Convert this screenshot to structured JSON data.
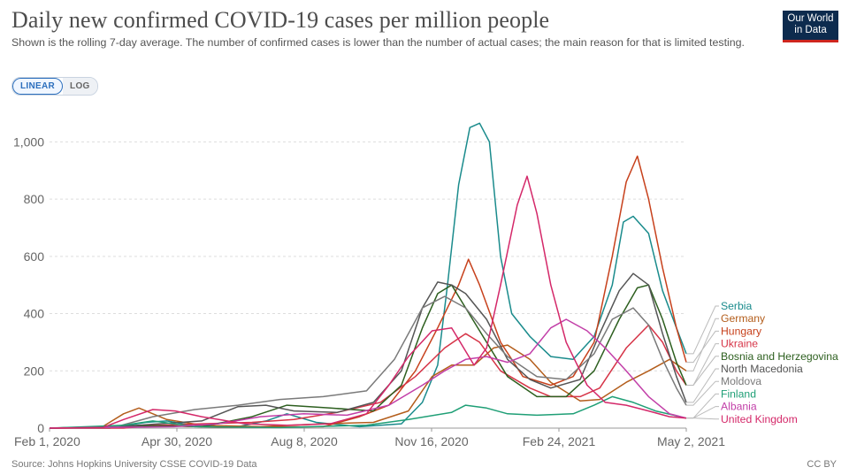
{
  "header": {
    "title": "Daily new confirmed COVID-19 cases per million people",
    "subtitle": "Shown is the rolling 7-day average. The number of confirmed cases is lower than the number of actual cases; the main reason for that is limited testing.",
    "logo_line1": "Our World",
    "logo_line2": "in Data"
  },
  "controls": {
    "linear_label": "LINEAR",
    "log_label": "LOG",
    "selected": "LINEAR"
  },
  "footer": {
    "source": "Source: Johns Hopkins University CSSE COVID-19 Data",
    "license": "CC BY"
  },
  "chart_data": {
    "type": "line",
    "xlabel": "",
    "ylabel": "",
    "x_ticks": [
      "Feb 1, 2020",
      "Apr 30, 2020",
      "Aug 8, 2020",
      "Nov 16, 2020",
      "Feb 24, 2021",
      "May 2, 2021"
    ],
    "y_ticks": [
      "0",
      "200",
      "400",
      "600",
      "800",
      "1,000"
    ],
    "ylim": [
      0,
      1100
    ],
    "x_start": "2020-02-01",
    "x_end": "2021-05-02",
    "grid": "horizontal dashed",
    "legend": "right, labels at line ends",
    "series": [
      {
        "name": "Serbia",
        "color": "#1a8b8c",
        "points": [
          [
            "2020-02-01",
            0
          ],
          [
            "2020-03-15",
            0
          ],
          [
            "2020-04-10",
            20
          ],
          [
            "2020-04-25",
            25
          ],
          [
            "2020-05-15",
            8
          ],
          [
            "2020-06-15",
            5
          ],
          [
            "2020-07-05",
            25
          ],
          [
            "2020-07-20",
            50
          ],
          [
            "2020-08-10",
            20
          ],
          [
            "2020-09-10",
            5
          ],
          [
            "2020-10-10",
            15
          ],
          [
            "2020-10-25",
            90
          ],
          [
            "2020-11-05",
            220
          ],
          [
            "2020-11-12",
            500
          ],
          [
            "2020-11-20",
            850
          ],
          [
            "2020-11-28",
            1050
          ],
          [
            "2020-12-05",
            1065
          ],
          [
            "2020-12-12",
            1000
          ],
          [
            "2020-12-20",
            600
          ],
          [
            "2020-12-28",
            400
          ],
          [
            "2021-01-10",
            320
          ],
          [
            "2021-01-25",
            250
          ],
          [
            "2021-02-10",
            240
          ],
          [
            "2021-02-25",
            320
          ],
          [
            "2021-03-10",
            500
          ],
          [
            "2021-03-18",
            720
          ],
          [
            "2021-03-25",
            740
          ],
          [
            "2021-04-05",
            680
          ],
          [
            "2021-04-15",
            480
          ],
          [
            "2021-04-25",
            350
          ],
          [
            "2021-05-02",
            260
          ]
        ]
      },
      {
        "name": "Germany",
        "color": "#b35d1b",
        "points": [
          [
            "2020-02-01",
            0
          ],
          [
            "2020-03-10",
            5
          ],
          [
            "2020-03-25",
            50
          ],
          [
            "2020-04-05",
            70
          ],
          [
            "2020-04-25",
            30
          ],
          [
            "2020-05-20",
            10
          ],
          [
            "2020-07-01",
            5
          ],
          [
            "2020-08-15",
            15
          ],
          [
            "2020-09-20",
            20
          ],
          [
            "2020-10-15",
            60
          ],
          [
            "2020-11-01",
            180
          ],
          [
            "2020-11-15",
            220
          ],
          [
            "2020-12-01",
            220
          ],
          [
            "2020-12-15",
            280
          ],
          [
            "2020-12-25",
            290
          ],
          [
            "2021-01-10",
            240
          ],
          [
            "2021-01-25",
            160
          ],
          [
            "2021-02-15",
            95
          ],
          [
            "2021-03-01",
            100
          ],
          [
            "2021-03-20",
            160
          ],
          [
            "2021-04-05",
            200
          ],
          [
            "2021-04-20",
            240
          ],
          [
            "2021-05-02",
            200
          ]
        ]
      },
      {
        "name": "Hungary",
        "color": "#c7411c",
        "points": [
          [
            "2020-02-01",
            0
          ],
          [
            "2020-03-15",
            2
          ],
          [
            "2020-04-15",
            10
          ],
          [
            "2020-06-01",
            3
          ],
          [
            "2020-08-15",
            5
          ],
          [
            "2020-09-10",
            40
          ],
          [
            "2020-10-01",
            80
          ],
          [
            "2020-10-20",
            200
          ],
          [
            "2020-11-05",
            350
          ],
          [
            "2020-11-20",
            500
          ],
          [
            "2020-11-27",
            590
          ],
          [
            "2020-12-05",
            500
          ],
          [
            "2020-12-20",
            300
          ],
          [
            "2021-01-05",
            180
          ],
          [
            "2021-01-25",
            150
          ],
          [
            "2021-02-10",
            180
          ],
          [
            "2021-02-25",
            300
          ],
          [
            "2021-03-10",
            600
          ],
          [
            "2021-03-20",
            860
          ],
          [
            "2021-03-28",
            950
          ],
          [
            "2021-04-05",
            800
          ],
          [
            "2021-04-15",
            560
          ],
          [
            "2021-04-25",
            350
          ],
          [
            "2021-05-02",
            230
          ]
        ]
      },
      {
        "name": "Ukraine",
        "color": "#d63447",
        "points": [
          [
            "2020-02-01",
            0
          ],
          [
            "2020-03-25",
            0
          ],
          [
            "2020-04-20",
            10
          ],
          [
            "2020-05-20",
            15
          ],
          [
            "2020-06-25",
            20
          ],
          [
            "2020-07-25",
            30
          ],
          [
            "2020-08-25",
            55
          ],
          [
            "2020-09-25",
            90
          ],
          [
            "2020-10-20",
            180
          ],
          [
            "2020-11-10",
            280
          ],
          [
            "2020-11-25",
            330
          ],
          [
            "2020-12-05",
            300
          ],
          [
            "2020-12-20",
            200
          ],
          [
            "2021-01-10",
            140
          ],
          [
            "2021-01-25",
            110
          ],
          [
            "2021-02-15",
            110
          ],
          [
            "2021-03-01",
            140
          ],
          [
            "2021-03-20",
            280
          ],
          [
            "2021-04-05",
            360
          ],
          [
            "2021-04-15",
            300
          ],
          [
            "2021-04-25",
            200
          ],
          [
            "2021-05-02",
            150
          ]
        ]
      },
      {
        "name": "Bosnia and Herzegovina",
        "color": "#2d5f1f",
        "points": [
          [
            "2020-02-01",
            0
          ],
          [
            "2020-03-25",
            5
          ],
          [
            "2020-04-20",
            8
          ],
          [
            "2020-05-20",
            5
          ],
          [
            "2020-06-25",
            40
          ],
          [
            "2020-07-20",
            80
          ],
          [
            "2020-08-20",
            70
          ],
          [
            "2020-09-20",
            60
          ],
          [
            "2020-10-10",
            150
          ],
          [
            "2020-10-25",
            350
          ],
          [
            "2020-11-05",
            470
          ],
          [
            "2020-11-15",
            500
          ],
          [
            "2020-11-25",
            420
          ],
          [
            "2020-12-10",
            300
          ],
          [
            "2020-12-25",
            180
          ],
          [
            "2021-01-15",
            110
          ],
          [
            "2021-02-05",
            110
          ],
          [
            "2021-02-25",
            200
          ],
          [
            "2021-03-15",
            380
          ],
          [
            "2021-03-28",
            490
          ],
          [
            "2021-04-05",
            500
          ],
          [
            "2021-04-15",
            380
          ],
          [
            "2021-04-25",
            230
          ],
          [
            "2021-05-02",
            150
          ]
        ]
      },
      {
        "name": "North Macedonia",
        "color": "#555555",
        "points": [
          [
            "2020-02-01",
            0
          ],
          [
            "2020-03-20",
            5
          ],
          [
            "2020-04-20",
            15
          ],
          [
            "2020-05-20",
            25
          ],
          [
            "2020-06-15",
            75
          ],
          [
            "2020-07-05",
            80
          ],
          [
            "2020-07-25",
            60
          ],
          [
            "2020-08-25",
            55
          ],
          [
            "2020-09-20",
            90
          ],
          [
            "2020-10-10",
            200
          ],
          [
            "2020-10-25",
            420
          ],
          [
            "2020-11-05",
            510
          ],
          [
            "2020-11-15",
            500
          ],
          [
            "2020-11-25",
            470
          ],
          [
            "2020-12-10",
            380
          ],
          [
            "2020-12-25",
            240
          ],
          [
            "2021-01-10",
            170
          ],
          [
            "2021-01-25",
            140
          ],
          [
            "2021-02-15",
            170
          ],
          [
            "2021-03-01",
            330
          ],
          [
            "2021-03-15",
            480
          ],
          [
            "2021-03-25",
            540
          ],
          [
            "2021-04-05",
            500
          ],
          [
            "2021-04-15",
            330
          ],
          [
            "2021-04-25",
            180
          ],
          [
            "2021-05-02",
            90
          ]
        ]
      },
      {
        "name": "Moldova",
        "color": "#7a7a7a",
        "points": [
          [
            "2020-02-01",
            0
          ],
          [
            "2020-03-20",
            5
          ],
          [
            "2020-04-15",
            40
          ],
          [
            "2020-05-15",
            65
          ],
          [
            "2020-06-15",
            80
          ],
          [
            "2020-07-15",
            100
          ],
          [
            "2020-08-15",
            110
          ],
          [
            "2020-09-15",
            130
          ],
          [
            "2020-10-05",
            240
          ],
          [
            "2020-10-25",
            420
          ],
          [
            "2020-11-10",
            460
          ],
          [
            "2020-11-25",
            420
          ],
          [
            "2020-12-10",
            330
          ],
          [
            "2020-12-25",
            250
          ],
          [
            "2021-01-15",
            180
          ],
          [
            "2021-02-05",
            170
          ],
          [
            "2021-02-25",
            260
          ],
          [
            "2021-03-10",
            380
          ],
          [
            "2021-03-25",
            420
          ],
          [
            "2021-04-05",
            360
          ],
          [
            "2021-04-15",
            240
          ],
          [
            "2021-04-25",
            140
          ],
          [
            "2021-05-02",
            80
          ]
        ]
      },
      {
        "name": "Finland",
        "color": "#1f9f76",
        "points": [
          [
            "2020-02-01",
            0
          ],
          [
            "2020-03-25",
            10
          ],
          [
            "2020-04-15",
            25
          ],
          [
            "2020-05-15",
            5
          ],
          [
            "2020-07-15",
            2
          ],
          [
            "2020-09-15",
            10
          ],
          [
            "2020-10-15",
            30
          ],
          [
            "2020-11-15",
            55
          ],
          [
            "2020-11-25",
            80
          ],
          [
            "2020-12-10",
            70
          ],
          [
            "2020-12-25",
            50
          ],
          [
            "2021-01-15",
            45
          ],
          [
            "2021-02-10",
            50
          ],
          [
            "2021-02-25",
            80
          ],
          [
            "2021-03-10",
            110
          ],
          [
            "2021-03-25",
            90
          ],
          [
            "2021-04-10",
            60
          ],
          [
            "2021-05-02",
            35
          ]
        ]
      },
      {
        "name": "Albania",
        "color": "#c23fa8",
        "points": [
          [
            "2020-02-01",
            0
          ],
          [
            "2020-03-25",
            3
          ],
          [
            "2020-04-30",
            5
          ],
          [
            "2020-06-01",
            15
          ],
          [
            "2020-07-01",
            40
          ],
          [
            "2020-08-01",
            50
          ],
          [
            "2020-09-01",
            45
          ],
          [
            "2020-10-01",
            80
          ],
          [
            "2020-10-25",
            150
          ],
          [
            "2020-11-10",
            200
          ],
          [
            "2020-11-25",
            240
          ],
          [
            "2020-12-10",
            250
          ],
          [
            "2020-12-25",
            230
          ],
          [
            "2021-01-10",
            260
          ],
          [
            "2021-01-25",
            350
          ],
          [
            "2021-02-05",
            380
          ],
          [
            "2021-02-20",
            340
          ],
          [
            "2021-03-05",
            280
          ],
          [
            "2021-03-20",
            200
          ],
          [
            "2021-04-05",
            110
          ],
          [
            "2021-04-20",
            50
          ],
          [
            "2021-05-02",
            35
          ]
        ]
      },
      {
        "name": "United Kingdom",
        "color": "#d42869",
        "points": [
          [
            "2020-02-01",
            0
          ],
          [
            "2020-03-10",
            2
          ],
          [
            "2020-03-25",
            30
          ],
          [
            "2020-04-15",
            65
          ],
          [
            "2020-05-01",
            60
          ],
          [
            "2020-05-20",
            40
          ],
          [
            "2020-06-20",
            15
          ],
          [
            "2020-07-20",
            10
          ],
          [
            "2020-08-20",
            15
          ],
          [
            "2020-09-15",
            50
          ],
          [
            "2020-10-01",
            150
          ],
          [
            "2020-10-15",
            250
          ],
          [
            "2020-11-01",
            340
          ],
          [
            "2020-11-15",
            350
          ],
          [
            "2020-12-01",
            220
          ],
          [
            "2020-12-10",
            280
          ],
          [
            "2020-12-20",
            500
          ],
          [
            "2021-01-01",
            780
          ],
          [
            "2021-01-08",
            880
          ],
          [
            "2021-01-15",
            750
          ],
          [
            "2021-01-25",
            500
          ],
          [
            "2021-02-05",
            300
          ],
          [
            "2021-02-20",
            150
          ],
          [
            "2021-03-05",
            90
          ],
          [
            "2021-03-20",
            80
          ],
          [
            "2021-04-05",
            60
          ],
          [
            "2021-04-20",
            40
          ],
          [
            "2021-05-02",
            35
          ]
        ]
      }
    ]
  }
}
